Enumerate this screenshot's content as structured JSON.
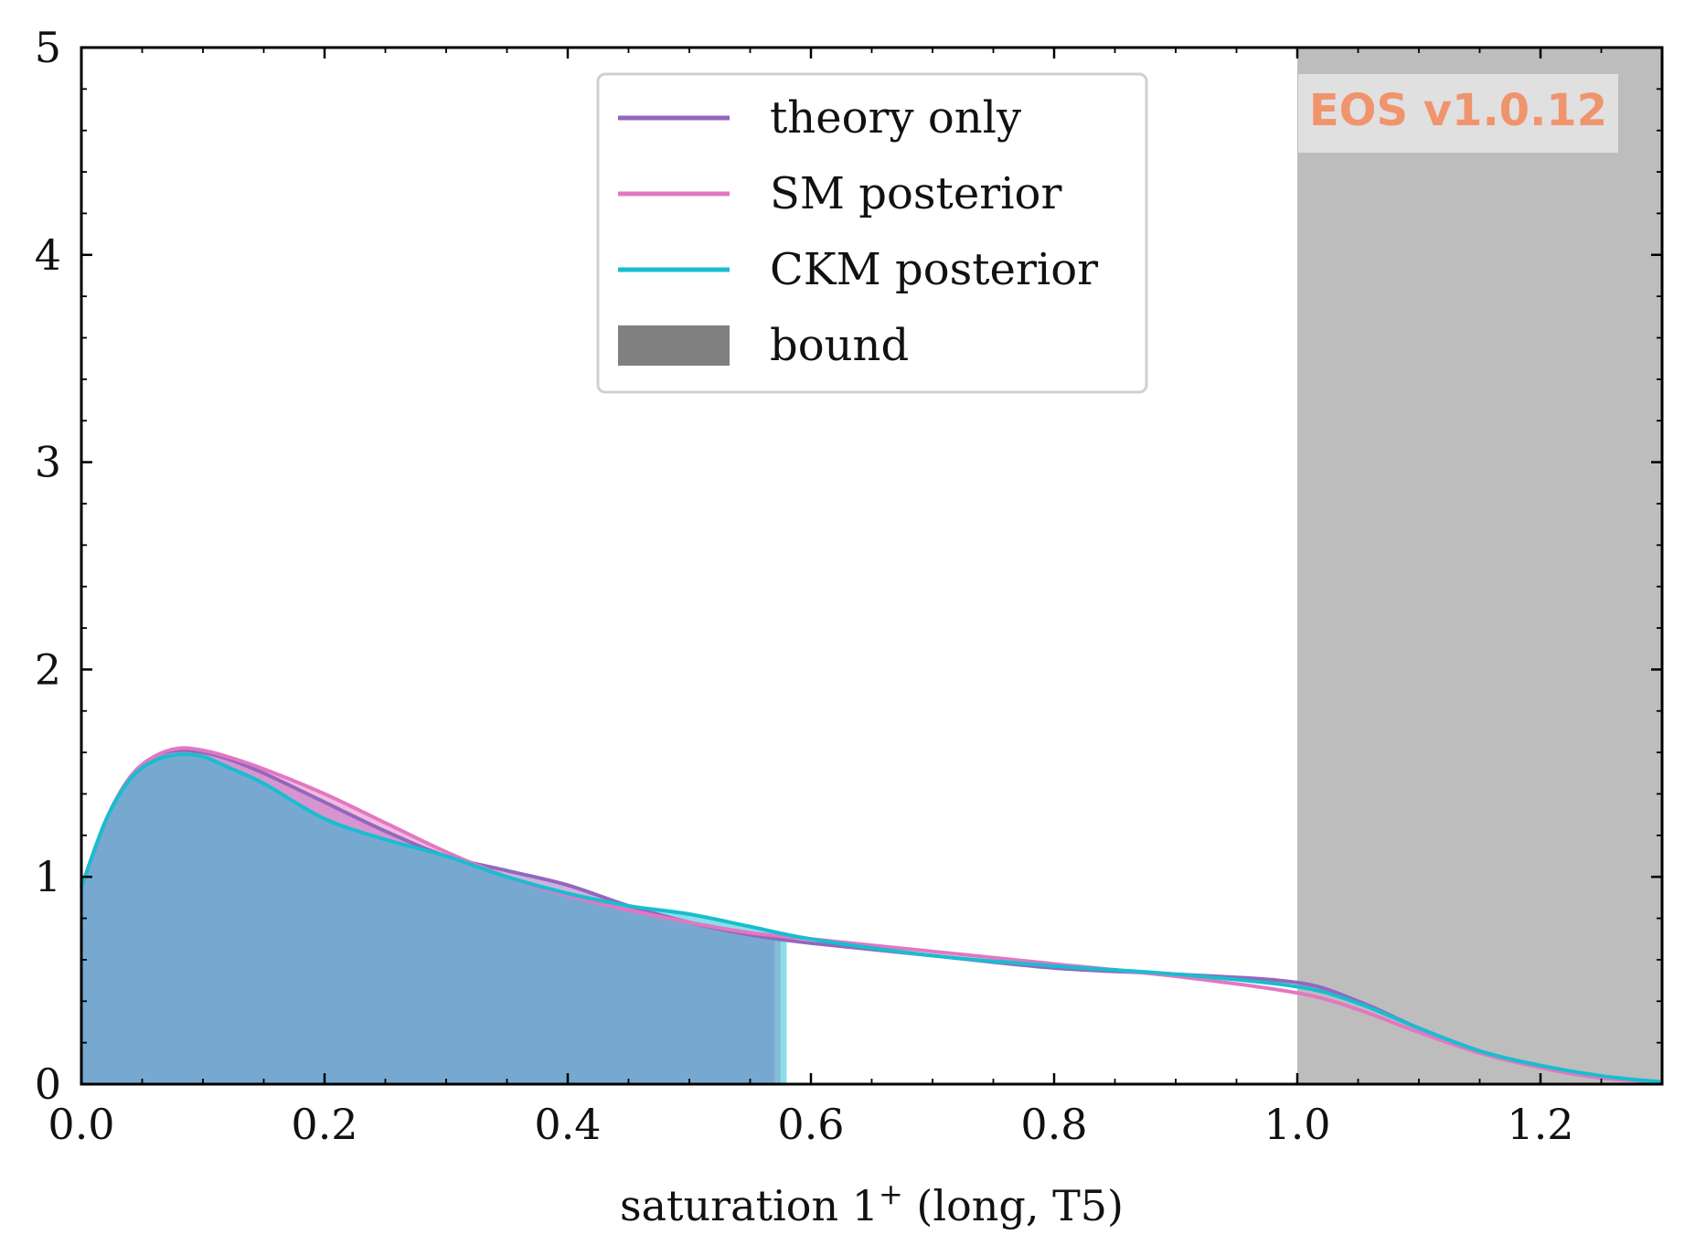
{
  "chart_data": {
    "type": "area",
    "xlabel": "saturation 1",
    "xlabel_superscript": "+",
    "xlabel_suffix": " (long, T5)",
    "ylabel": "",
    "xlim": [
      0.0,
      1.3
    ],
    "ylim": [
      0,
      5
    ],
    "x_ticks": [
      "0.0",
      "0.2",
      "0.4",
      "0.6",
      "0.8",
      "1.0",
      "1.2"
    ],
    "y_ticks": [
      "0",
      "1",
      "2",
      "3",
      "4",
      "5"
    ],
    "grid": false,
    "legend_position": "top-center",
    "watermark": "EOS v1.0.12",
    "bound": {
      "label": "bound",
      "x_min": 1.0,
      "x_max": 1.3,
      "color": "#bdbdbd",
      "legend_color": "#808080"
    },
    "series": [
      {
        "name": "theory only",
        "color": "#9467bd",
        "fill_to_x": 0.57,
        "x": [
          0.0,
          0.02,
          0.04,
          0.06,
          0.08,
          0.1,
          0.12,
          0.15,
          0.2,
          0.25,
          0.3,
          0.35,
          0.4,
          0.45,
          0.5,
          0.55,
          0.6,
          0.7,
          0.8,
          0.9,
          1.0,
          1.05,
          1.1,
          1.15,
          1.2,
          1.25,
          1.3
        ],
        "y": [
          0.95,
          1.27,
          1.48,
          1.58,
          1.61,
          1.6,
          1.57,
          1.5,
          1.36,
          1.22,
          1.1,
          1.03,
          0.96,
          0.86,
          0.78,
          0.72,
          0.68,
          0.62,
          0.56,
          0.53,
          0.49,
          0.4,
          0.27,
          0.16,
          0.08,
          0.03,
          0.01
        ]
      },
      {
        "name": "SM posterior",
        "color": "#e377c2",
        "fill_to_x": 0.575,
        "x": [
          0.0,
          0.02,
          0.04,
          0.06,
          0.08,
          0.1,
          0.12,
          0.15,
          0.2,
          0.25,
          0.3,
          0.35,
          0.4,
          0.45,
          0.5,
          0.55,
          0.6,
          0.7,
          0.8,
          0.9,
          1.0,
          1.05,
          1.1,
          1.15,
          1.2,
          1.25,
          1.3
        ],
        "y": [
          0.95,
          1.27,
          1.48,
          1.58,
          1.62,
          1.61,
          1.58,
          1.52,
          1.4,
          1.26,
          1.12,
          1.0,
          0.91,
          0.84,
          0.78,
          0.73,
          0.7,
          0.64,
          0.58,
          0.52,
          0.44,
          0.36,
          0.25,
          0.15,
          0.08,
          0.03,
          0.01
        ]
      },
      {
        "name": "CKM posterior",
        "color": "#17becf",
        "fill_to_x": 0.58,
        "x": [
          0.0,
          0.02,
          0.04,
          0.06,
          0.08,
          0.1,
          0.12,
          0.15,
          0.2,
          0.25,
          0.3,
          0.35,
          0.4,
          0.45,
          0.5,
          0.55,
          0.6,
          0.7,
          0.8,
          0.9,
          1.0,
          1.05,
          1.1,
          1.15,
          1.2,
          1.25,
          1.3
        ],
        "y": [
          0.95,
          1.27,
          1.47,
          1.56,
          1.59,
          1.58,
          1.53,
          1.45,
          1.28,
          1.18,
          1.1,
          1.0,
          0.92,
          0.86,
          0.82,
          0.76,
          0.7,
          0.62,
          0.57,
          0.53,
          0.47,
          0.39,
          0.27,
          0.16,
          0.09,
          0.04,
          0.01
        ]
      }
    ],
    "legend": [
      {
        "label": "theory only",
        "kind": "line",
        "color": "#9467bd"
      },
      {
        "label": "SM posterior",
        "kind": "line",
        "color": "#e377c2"
      },
      {
        "label": "CKM posterior",
        "kind": "line",
        "color": "#17becf"
      },
      {
        "label": "bound",
        "kind": "patch",
        "color": "#808080"
      }
    ],
    "watermark_color": "#f0946d",
    "watermark_bg": "#e0e0e0"
  }
}
